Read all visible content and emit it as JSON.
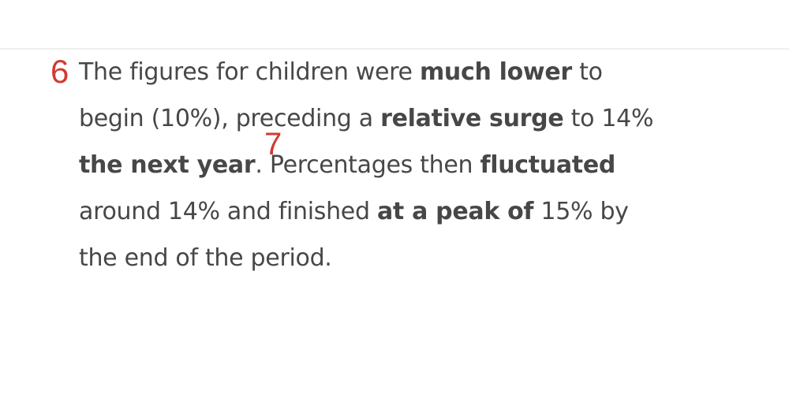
{
  "paragraph": {
    "marker": "6",
    "lines": [
      [
        {
          "text": "The figures for children were ",
          "bold": false
        },
        {
          "text": "much lower",
          "bold": true
        },
        {
          "text": " to",
          "bold": false
        }
      ],
      [
        {
          "text": "begin (10%), preceding a ",
          "bold": false
        },
        {
          "text": "relative surge",
          "bold": true
        },
        {
          "text": " to 14%",
          "bold": false
        }
      ],
      [
        {
          "text": "the next year",
          "bold": true
        },
        {
          "text": ". Percentages then ",
          "bold": false
        },
        {
          "text": "fluctuated",
          "bold": true
        }
      ],
      [
        {
          "text": "around 14% and finished ",
          "bold": false
        },
        {
          "text": "at a peak of",
          "bold": true
        },
        {
          "text": " 15% by",
          "bold": false
        }
      ],
      [
        {
          "text": "the end of the period.",
          "bold": false
        }
      ]
    ],
    "inline_marker": "7"
  }
}
